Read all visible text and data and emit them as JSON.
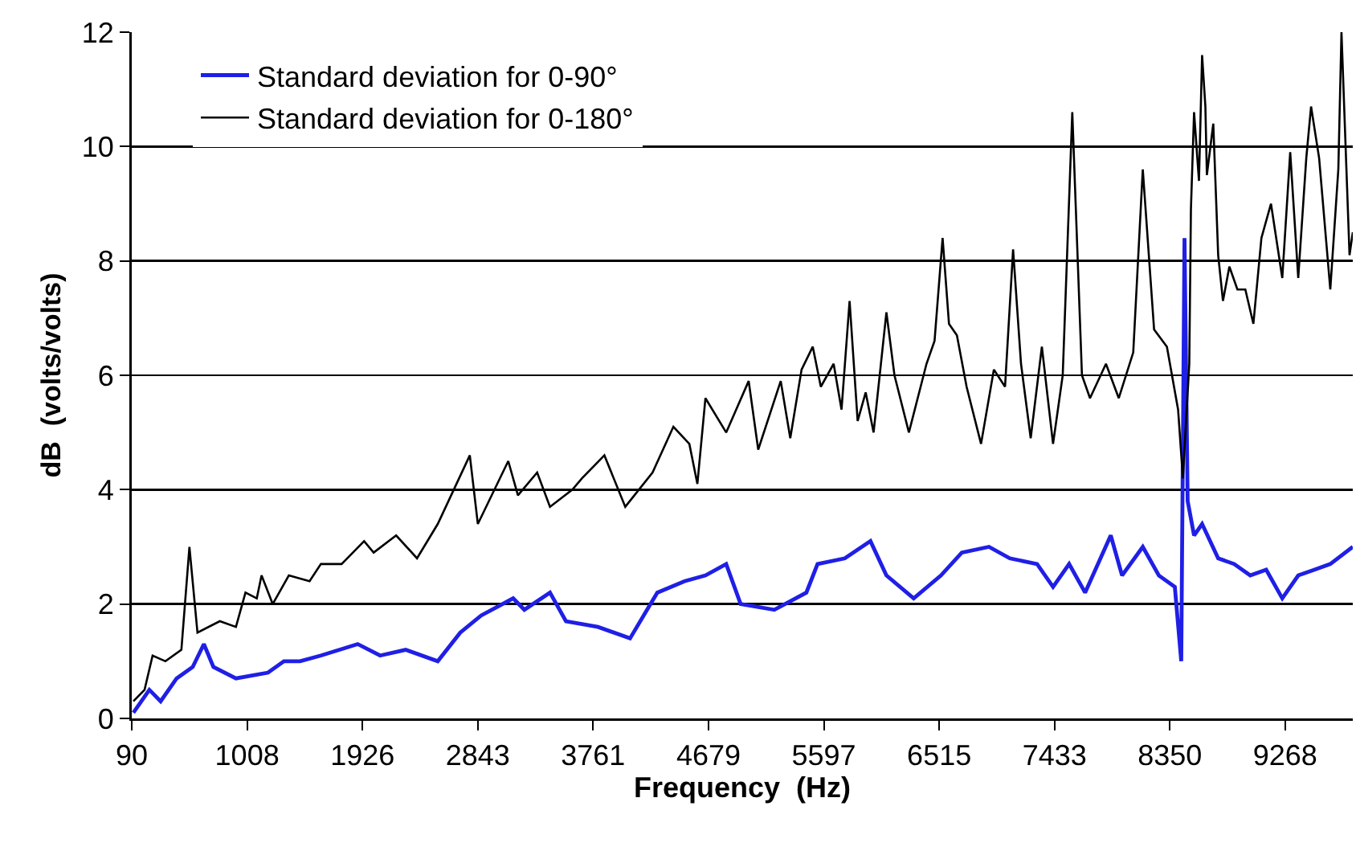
{
  "chart_data": {
    "type": "line",
    "xlabel": "Frequency  (Hz)",
    "ylabel": "dB  (volts/volts)",
    "xlim": [
      90,
      9806
    ],
    "xticks": [
      90,
      1008,
      1926,
      2843,
      3761,
      4679,
      5597,
      6515,
      7433,
      8350,
      9268
    ],
    "ylim": [
      0,
      12
    ],
    "yticks": [
      0,
      2,
      4,
      6,
      8,
      10,
      12
    ],
    "grid": "y",
    "legend": "top left",
    "marker": "none",
    "line_style": "solid",
    "series": [
      {
        "name": "Standard deviation for 0-90°",
        "color": "#1f1fe6",
        "x": [
          103,
          230,
          320,
          447,
          575,
          664,
          740,
          919,
          1174,
          1301,
          1429,
          1595,
          1888,
          2066,
          2270,
          2525,
          2704,
          2870,
          3125,
          3214,
          3418,
          3545,
          3800,
          4055,
          4272,
          4489,
          4655,
          4820,
          4935,
          5203,
          5458,
          5547,
          5764,
          5968,
          6095,
          6312,
          6529,
          6695,
          6911,
          7077,
          7294,
          7421,
          7549,
          7676,
          7880,
          7970,
          8135,
          8263,
          8390,
          8441,
          8467,
          8492,
          8543,
          8607,
          8735,
          8862,
          8990,
          9117,
          9245,
          9372,
          9500,
          9627,
          9806
        ],
        "values": [
          0.1,
          0.5,
          0.3,
          0.7,
          0.9,
          1.3,
          0.9,
          0.7,
          0.8,
          1.0,
          1.0,
          1.1,
          1.3,
          1.1,
          1.2,
          1.0,
          1.5,
          1.8,
          2.1,
          1.9,
          2.2,
          1.7,
          1.6,
          1.4,
          2.2,
          2.4,
          2.5,
          2.7,
          2.0,
          1.9,
          2.2,
          2.7,
          2.8,
          3.1,
          2.5,
          2.1,
          2.5,
          2.9,
          3.0,
          2.8,
          2.7,
          2.3,
          2.7,
          2.2,
          3.2,
          2.5,
          3.0,
          2.5,
          2.3,
          1.0,
          8.4,
          3.8,
          3.2,
          3.4,
          2.8,
          2.7,
          2.5,
          2.6,
          2.1,
          2.5,
          2.6,
          2.7,
          3.0
        ]
      },
      {
        "name": "Standard deviation for 0-180°",
        "color": "#000000",
        "x": [
          103,
          192,
          256,
          358,
          485,
          549,
          613,
          791,
          919,
          995,
          1085,
          1123,
          1212,
          1340,
          1505,
          1595,
          1760,
          1939,
          2015,
          2194,
          2360,
          2525,
          2780,
          2844,
          3086,
          3163,
          3316,
          3418,
          3596,
          3673,
          3851,
          4017,
          4234,
          4400,
          4527,
          4591,
          4655,
          4820,
          4999,
          5075,
          5254,
          5330,
          5420,
          5509,
          5573,
          5675,
          5738,
          5802,
          5866,
          5930,
          5993,
          6095,
          6159,
          6274,
          6414,
          6478,
          6542,
          6593,
          6656,
          6733,
          6848,
          6950,
          7039,
          7103,
          7166,
          7243,
          7332,
          7421,
          7498,
          7574,
          7651,
          7715,
          7842,
          7944,
          8059,
          8135,
          8225,
          8327,
          8416,
          8454,
          8505,
          8518,
          8543,
          8582,
          8607,
          8633,
          8645,
          8696,
          8735,
          8773,
          8824,
          8888,
          8951,
          9015,
          9079,
          9155,
          9245,
          9308,
          9372,
          9436,
          9474,
          9538,
          9627,
          9691,
          9716,
          9780,
          9806
        ],
        "values": [
          0.3,
          0.5,
          1.1,
          1.0,
          1.2,
          3.0,
          1.5,
          1.7,
          1.6,
          2.2,
          2.1,
          2.5,
          2.0,
          2.5,
          2.4,
          2.7,
          2.7,
          3.1,
          2.9,
          3.2,
          2.8,
          3.4,
          4.6,
          3.4,
          4.5,
          3.9,
          4.3,
          3.7,
          4.0,
          4.2,
          4.6,
          3.7,
          4.3,
          5.1,
          4.8,
          4.1,
          5.6,
          5.0,
          5.9,
          4.7,
          5.9,
          4.9,
          6.1,
          6.5,
          5.8,
          6.2,
          5.4,
          7.3,
          5.2,
          5.7,
          5.0,
          7.1,
          6.0,
          5.0,
          6.2,
          6.6,
          8.4,
          6.9,
          6.7,
          5.8,
          4.8,
          6.1,
          5.8,
          8.2,
          6.2,
          4.9,
          6.5,
          4.8,
          6.0,
          10.6,
          6.0,
          5.6,
          6.2,
          5.6,
          6.4,
          9.6,
          6.8,
          6.5,
          5.4,
          4.2,
          6.2,
          8.9,
          10.6,
          9.4,
          11.6,
          10.7,
          9.5,
          10.4,
          8.1,
          7.3,
          7.9,
          7.5,
          7.5,
          6.9,
          8.4,
          9.0,
          7.7,
          9.9,
          7.7,
          9.8,
          10.7,
          9.8,
          7.5,
          9.6,
          12.0,
          8.1,
          8.5
        ]
      }
    ]
  }
}
